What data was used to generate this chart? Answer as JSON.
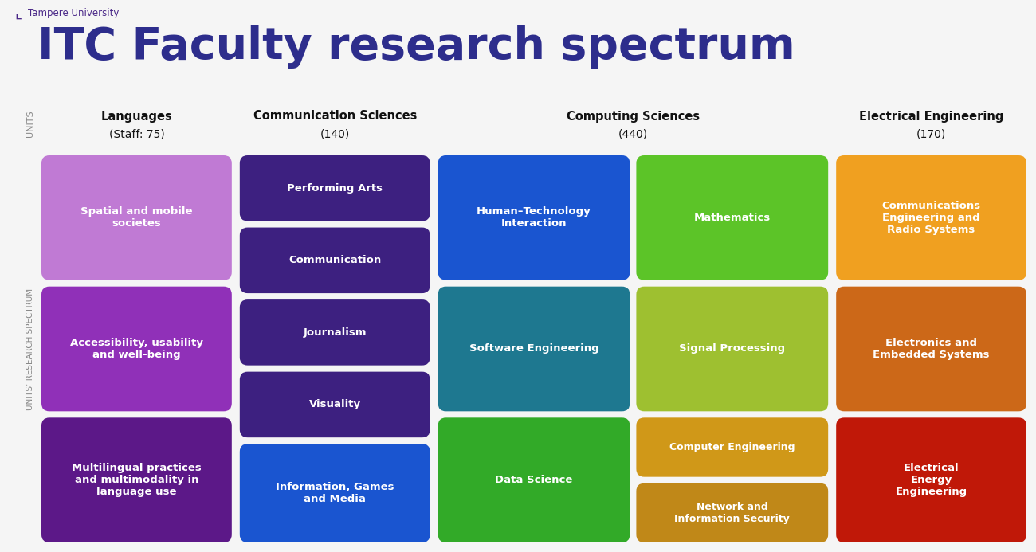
{
  "title": "ITC Faculty research spectrum",
  "background_color": "#f5f5f5",
  "title_color": "#2d2d8c",
  "title_fontsize": 40,
  "side_label_units": "UNITS",
  "side_label_spectrum": "UNITS’ RESEARCH SPECTRUM",
  "logo_text": "Tampere University",
  "col_headers": [
    {
      "line1": "Languages",
      "line2": "(Staff: 75)"
    },
    {
      "line1": "Communication Sciences",
      "line2": "(140)"
    },
    {
      "line1": "Computing Sciences",
      "line2": "(440)"
    },
    {
      "line1": "Electrical Engineering",
      "line2": "(170)"
    }
  ],
  "lang_colors": [
    "#c07ad4",
    "#9030b8",
    "#5c1888"
  ],
  "lang_texts": [
    "Spatial and mobile\nsocietes",
    "Accessibility, usability\nand well-being",
    "Multilingual practices\nand multimodality in\nlanguage use"
  ],
  "comm_colors": [
    "#3d2080",
    "#3d2080",
    "#3d2080",
    "#3d2080",
    "#1a55d0"
  ],
  "comm_texts": [
    "Performing Arts",
    "Communication",
    "Journalism",
    "Visuality",
    "Information, Games\nand Media"
  ],
  "comp_left_colors": [
    "#1a55d0",
    "#1e7890",
    "#32aa28"
  ],
  "comp_left_texts": [
    "Human–Technology\nInteraction",
    "Software Engineering",
    "Data Science"
  ],
  "comp_right_colors": [
    "#5cc428",
    "#9ec030",
    "#d09818",
    "#c08818"
  ],
  "comp_right_texts": [
    "Mathematics",
    "Signal Processing",
    "Computer Engineering",
    "Network and\nInformation Security"
  ],
  "ee_colors": [
    "#f0a020",
    "#cc6818",
    "#c01808"
  ],
  "ee_texts": [
    "Communications\nEngineering and\nRadio Systems",
    "Electronics and\nEmbedded Systems",
    "Electrical\nEnergy\nEngineering"
  ]
}
